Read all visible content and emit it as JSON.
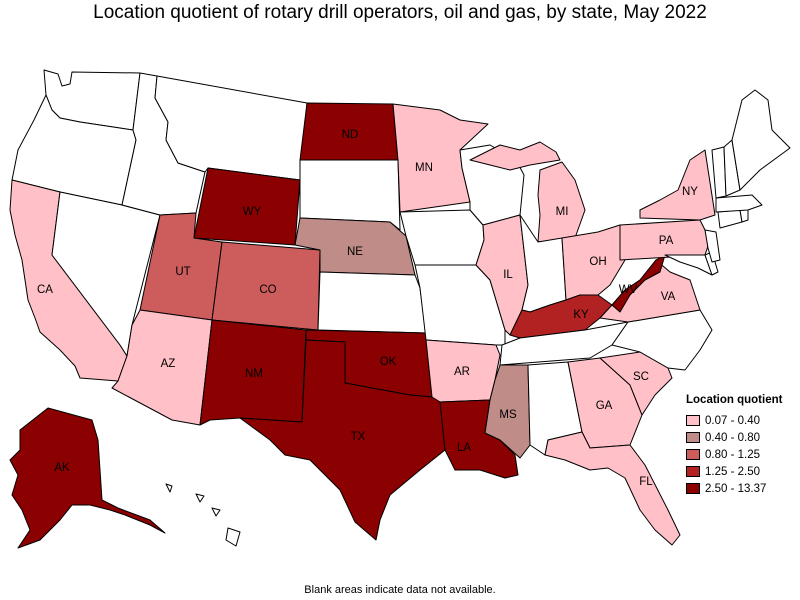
{
  "title": "Location quotient of rotary drill operators, oil and gas, by state, May 2022",
  "footnote": "Blank areas indicate data not available.",
  "legend": {
    "title": "Location quotient",
    "items": [
      {
        "label": "0.07 - 0.40",
        "color": "#ffc0c8"
      },
      {
        "label": "0.40 - 0.80",
        "color": "#bf8c88"
      },
      {
        "label": "0.80 - 1.25",
        "color": "#cd5c5c"
      },
      {
        "label": "1.25 - 2.50",
        "color": "#b22222"
      },
      {
        "label": "2.50 - 13.37",
        "color": "#8b0000"
      }
    ]
  },
  "states": [
    {
      "code": "WA",
      "label": "",
      "class": "none"
    },
    {
      "code": "OR",
      "label": "",
      "class": "none"
    },
    {
      "code": "CA",
      "label": "CA",
      "class": 0
    },
    {
      "code": "NV",
      "label": "",
      "class": "none"
    },
    {
      "code": "ID",
      "label": "",
      "class": "none"
    },
    {
      "code": "MT",
      "label": "",
      "class": "none"
    },
    {
      "code": "WY",
      "label": "WY",
      "class": 4
    },
    {
      "code": "UT",
      "label": "UT",
      "class": 2
    },
    {
      "code": "AZ",
      "label": "AZ",
      "class": 0
    },
    {
      "code": "CO",
      "label": "CO",
      "class": 2
    },
    {
      "code": "NM",
      "label": "NM",
      "class": 4
    },
    {
      "code": "ND",
      "label": "ND",
      "class": 4
    },
    {
      "code": "SD",
      "label": "",
      "class": "none"
    },
    {
      "code": "NE",
      "label": "NE",
      "class": 1
    },
    {
      "code": "KS",
      "label": "",
      "class": "none"
    },
    {
      "code": "OK",
      "label": "OK",
      "class": 4
    },
    {
      "code": "TX",
      "label": "TX",
      "class": 4
    },
    {
      "code": "MN",
      "label": "MN",
      "class": 0
    },
    {
      "code": "IA",
      "label": "",
      "class": "none"
    },
    {
      "code": "MO",
      "label": "",
      "class": "none"
    },
    {
      "code": "AR",
      "label": "AR",
      "class": 0
    },
    {
      "code": "LA",
      "label": "LA",
      "class": 4
    },
    {
      "code": "WI",
      "label": "",
      "class": "none"
    },
    {
      "code": "IL",
      "label": "IL",
      "class": 0
    },
    {
      "code": "MI",
      "label": "MI",
      "class": 0
    },
    {
      "code": "MI-UP",
      "label": "",
      "class": 0
    },
    {
      "code": "IN",
      "label": "",
      "class": "none"
    },
    {
      "code": "OH",
      "label": "OH",
      "class": 0
    },
    {
      "code": "KY",
      "label": "KY",
      "class": 3
    },
    {
      "code": "TN",
      "label": "",
      "class": "none"
    },
    {
      "code": "MS",
      "label": "MS",
      "class": 1
    },
    {
      "code": "AL",
      "label": "",
      "class": "none"
    },
    {
      "code": "GA",
      "label": "GA",
      "class": 0
    },
    {
      "code": "FL",
      "label": "FL",
      "class": 0
    },
    {
      "code": "SC",
      "label": "SC",
      "class": 0
    },
    {
      "code": "NC",
      "label": "",
      "class": "none"
    },
    {
      "code": "VA",
      "label": "VA",
      "class": 0
    },
    {
      "code": "WV",
      "label": "WV",
      "class": 4
    },
    {
      "code": "PA",
      "label": "PA",
      "class": 0
    },
    {
      "code": "NY",
      "label": "NY",
      "class": 0
    },
    {
      "code": "MD",
      "label": "",
      "class": "none"
    },
    {
      "code": "DE",
      "label": "",
      "class": "none"
    },
    {
      "code": "NJ",
      "label": "",
      "class": "none"
    },
    {
      "code": "CT",
      "label": "",
      "class": "none"
    },
    {
      "code": "RI",
      "label": "",
      "class": "none"
    },
    {
      "code": "MA",
      "label": "",
      "class": "none"
    },
    {
      "code": "VT",
      "label": "",
      "class": "none"
    },
    {
      "code": "NH",
      "label": "",
      "class": "none"
    },
    {
      "code": "ME",
      "label": "",
      "class": "none"
    },
    {
      "code": "AK",
      "label": "AK",
      "class": 4
    },
    {
      "code": "HI",
      "label": "",
      "class": "none"
    }
  ]
}
